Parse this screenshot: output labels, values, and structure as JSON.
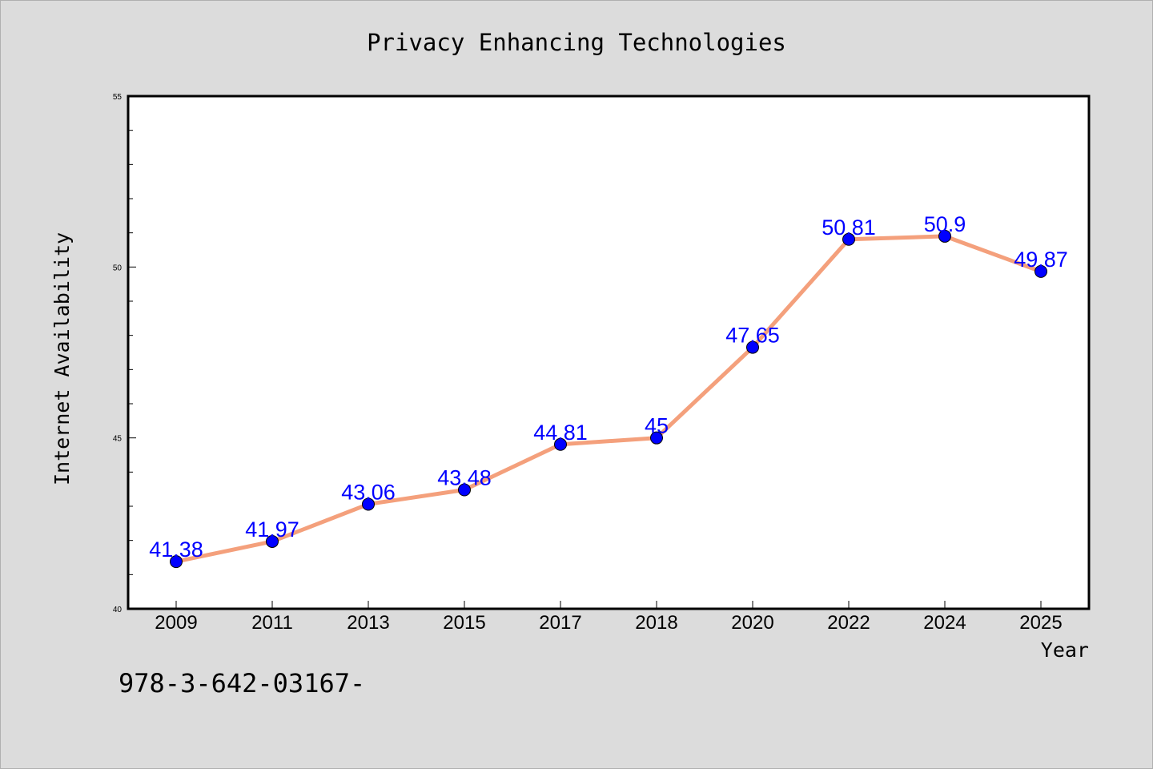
{
  "chart_data": {
    "type": "line",
    "title": "Privacy Enhancing Technologies",
    "xlabel": "Year",
    "ylabel": "Internet Availability",
    "categories": [
      "2009",
      "2011",
      "2013",
      "2015",
      "2017",
      "2018",
      "2020",
      "2022",
      "2024",
      "2025"
    ],
    "series": [
      {
        "values": [
          41.38,
          41.97,
          43.06,
          43.48,
          44.81,
          45,
          47.65,
          50.81,
          50.9,
          49.87
        ],
        "data_labels": [
          "41.38",
          "41.97",
          "43.06",
          "43.48",
          "44.81",
          "45",
          "47.65",
          "50.81",
          "50.9",
          "49.87"
        ],
        "line_color": "#f4a07c",
        "marker_color": "#0000ff",
        "label_color": "#0000ff"
      }
    ],
    "ylim": [
      40,
      55
    ],
    "yticks": [
      "40",
      "45",
      "50",
      "55"
    ],
    "grid": false,
    "legend": "none"
  },
  "footer_text": "978-3-642-03167-"
}
